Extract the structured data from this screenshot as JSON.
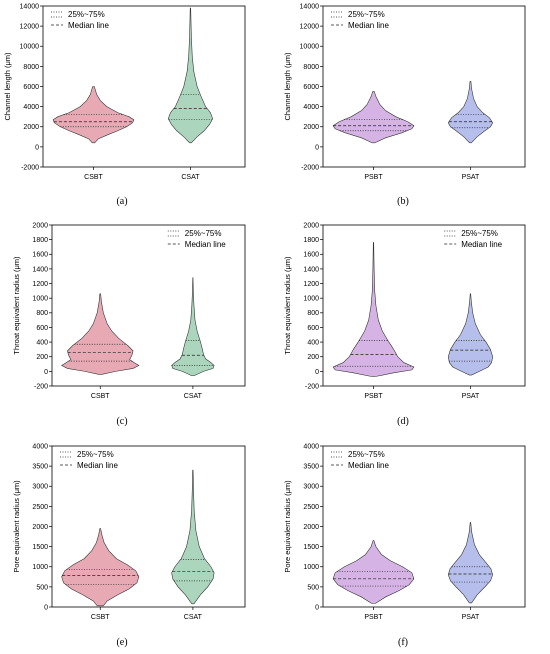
{
  "legend": {
    "quartile_label": "25%~75%",
    "median_label": "Median line"
  },
  "chart_data": [
    {
      "id": "a",
      "caption": "(a)",
      "type": "violin",
      "ylabel": "Channel length (μm)",
      "ylim": [
        -2000,
        14000
      ],
      "yticks": [
        -2000,
        0,
        2000,
        4000,
        6000,
        8000,
        10000,
        12000,
        14000
      ],
      "legend_position": "top-left",
      "colors": {
        "fill": "#e39aa6",
        "edge": "#444444"
      },
      "groups": [
        {
          "name": "CSBT",
          "fill": "#e39aa6",
          "profile": [
            [
              400,
              0.03
            ],
            [
              800,
              0.12
            ],
            [
              1200,
              0.35
            ],
            [
              1600,
              0.6
            ],
            [
              2000,
              0.82
            ],
            [
              2400,
              0.97
            ],
            [
              2700,
              1.0
            ],
            [
              3000,
              0.88
            ],
            [
              3400,
              0.6
            ],
            [
              4000,
              0.33
            ],
            [
              4600,
              0.17
            ],
            [
              5200,
              0.08
            ],
            [
              6000,
              0.02
            ]
          ],
          "q1": 2000,
          "median": 2500,
          "q3": 3200
        },
        {
          "name": "CSAT",
          "fill": "#9ccfb2",
          "profile": [
            [
              400,
              0.04
            ],
            [
              1000,
              0.3
            ],
            [
              1600,
              0.62
            ],
            [
              2200,
              0.85
            ],
            [
              2800,
              1.0
            ],
            [
              3400,
              0.9
            ],
            [
              4000,
              0.68
            ],
            [
              5000,
              0.48
            ],
            [
              6000,
              0.3
            ],
            [
              7500,
              0.15
            ],
            [
              9000,
              0.08
            ],
            [
              11000,
              0.04
            ],
            [
              13800,
              0.01
            ]
          ],
          "q1": 2700,
          "median": 3800,
          "q3": 5200
        }
      ]
    },
    {
      "id": "b",
      "caption": "(b)",
      "type": "violin",
      "ylabel": "Channel length (μm)",
      "ylim": [
        -2000,
        14000
      ],
      "yticks": [
        -2000,
        0,
        2000,
        4000,
        6000,
        8000,
        10000,
        12000,
        14000
      ],
      "legend_position": "top-left",
      "colors": {
        "fill": "#cfa6e0",
        "edge": "#444444"
      },
      "groups": [
        {
          "name": "PSBT",
          "fill": "#cfa6e0",
          "profile": [
            [
              400,
              0.03
            ],
            [
              900,
              0.3
            ],
            [
              1400,
              0.7
            ],
            [
              1800,
              0.95
            ],
            [
              2100,
              1.0
            ],
            [
              2500,
              0.85
            ],
            [
              3000,
              0.55
            ],
            [
              3600,
              0.3
            ],
            [
              4200,
              0.16
            ],
            [
              5000,
              0.06
            ],
            [
              5500,
              0.02
            ]
          ],
          "q1": 1600,
          "median": 2100,
          "q3": 2700
        },
        {
          "name": "PSAT",
          "fill": "#a9b4e8",
          "profile": [
            [
              400,
              0.04
            ],
            [
              1000,
              0.3
            ],
            [
              1600,
              0.65
            ],
            [
              2000,
              0.9
            ],
            [
              2400,
              1.0
            ],
            [
              2900,
              0.85
            ],
            [
              3400,
              0.55
            ],
            [
              4000,
              0.3
            ],
            [
              4800,
              0.14
            ],
            [
              5800,
              0.05
            ],
            [
              6500,
              0.02
            ]
          ],
          "q1": 1900,
          "median": 2500,
          "q3": 3200
        }
      ]
    },
    {
      "id": "c",
      "caption": "(c)",
      "type": "violin",
      "ylabel": "Throat equivalent radius (μm)",
      "ylim": [
        -200,
        2000
      ],
      "yticks": [
        -200,
        0,
        200,
        400,
        600,
        800,
        1000,
        1200,
        1400,
        1600,
        1800,
        2000
      ],
      "legend_position": "top-right",
      "colors": {
        "fill": "#e39aa6",
        "edge": "#444444"
      },
      "groups": [
        {
          "name": "CSBT",
          "fill": "#e39aa6",
          "profile": [
            [
              -40,
              0.05
            ],
            [
              0,
              0.4
            ],
            [
              40,
              0.85
            ],
            [
              80,
              1.0
            ],
            [
              120,
              0.88
            ],
            [
              160,
              0.76
            ],
            [
              220,
              0.82
            ],
            [
              280,
              0.85
            ],
            [
              350,
              0.72
            ],
            [
              450,
              0.48
            ],
            [
              550,
              0.3
            ],
            [
              650,
              0.18
            ],
            [
              800,
              0.08
            ],
            [
              950,
              0.03
            ],
            [
              1060,
              0.01
            ]
          ],
          "q1": 140,
          "median": 260,
          "q3": 370
        },
        {
          "name": "CSAT",
          "fill": "#9ccfb2",
          "profile": [
            [
              -60,
              0.05
            ],
            [
              0,
              0.5
            ],
            [
              40,
              0.95
            ],
            [
              80,
              1.0
            ],
            [
              120,
              0.85
            ],
            [
              170,
              0.6
            ],
            [
              230,
              0.5
            ],
            [
              300,
              0.45
            ],
            [
              400,
              0.36
            ],
            [
              550,
              0.2
            ],
            [
              700,
              0.1
            ],
            [
              900,
              0.05
            ],
            [
              1100,
              0.02
            ],
            [
              1280,
              0.005
            ]
          ],
          "q1": 80,
          "median": 220,
          "q3": 420
        }
      ]
    },
    {
      "id": "d",
      "caption": "(d)",
      "type": "violin",
      "ylabel": "Throat equivalent radius (μm)",
      "ylim": [
        -200,
        2000
      ],
      "yticks": [
        -200,
        0,
        200,
        400,
        600,
        800,
        1000,
        1200,
        1400,
        1600,
        1800,
        2000
      ],
      "legend_position": "top-right",
      "colors": {
        "fill": "#cfa6e0",
        "edge": "#444444"
      },
      "groups": [
        {
          "name": "PSBT",
          "fill": "#cfa6e0",
          "profile": [
            [
              -70,
              0.05
            ],
            [
              -20,
              0.5
            ],
            [
              20,
              0.95
            ],
            [
              60,
              1.0
            ],
            [
              120,
              0.75
            ],
            [
              200,
              0.6
            ],
            [
              300,
              0.5
            ],
            [
              400,
              0.38
            ],
            [
              550,
              0.22
            ],
            [
              700,
              0.12
            ],
            [
              900,
              0.06
            ],
            [
              1100,
              0.03
            ],
            [
              1400,
              0.015
            ],
            [
              1760,
              0.005
            ]
          ],
          "q1": 70,
          "median": 230,
          "q3": 420
        },
        {
          "name": "PSAT",
          "fill": "#a9b4e8",
          "profile": [
            [
              -50,
              0.05
            ],
            [
              0,
              0.4
            ],
            [
              60,
              0.8
            ],
            [
              120,
              0.95
            ],
            [
              200,
              1.0
            ],
            [
              300,
              0.9
            ],
            [
              400,
              0.7
            ],
            [
              500,
              0.45
            ],
            [
              650,
              0.22
            ],
            [
              800,
              0.1
            ],
            [
              950,
              0.04
            ],
            [
              1060,
              0.01
            ]
          ],
          "q1": 140,
          "median": 290,
          "q3": 420
        }
      ]
    },
    {
      "id": "e",
      "caption": "(e)",
      "type": "violin",
      "ylabel": "Pore equivalent radius (μm)",
      "ylim": [
        0,
        4000
      ],
      "yticks": [
        0,
        500,
        1000,
        1500,
        2000,
        2500,
        3000,
        3500,
        4000
      ],
      "legend_position": "top-left",
      "colors": {
        "fill": "#e39aa6",
        "edge": "#444444"
      },
      "groups": [
        {
          "name": "CSBT",
          "fill": "#e39aa6",
          "profile": [
            [
              30,
              0.08
            ],
            [
              150,
              0.18
            ],
            [
              300,
              0.45
            ],
            [
              450,
              0.75
            ],
            [
              600,
              0.95
            ],
            [
              750,
              1.0
            ],
            [
              900,
              0.92
            ],
            [
              1050,
              0.7
            ],
            [
              1200,
              0.42
            ],
            [
              1400,
              0.22
            ],
            [
              1600,
              0.1
            ],
            [
              1800,
              0.04
            ],
            [
              1950,
              0.01
            ]
          ],
          "q1": 560,
          "median": 780,
          "q3": 930
        },
        {
          "name": "CSAT",
          "fill": "#9ccfb2",
          "profile": [
            [
              80,
              0.05
            ],
            [
              300,
              0.35
            ],
            [
              500,
              0.7
            ],
            [
              700,
              0.95
            ],
            [
              850,
              1.0
            ],
            [
              1000,
              0.85
            ],
            [
              1200,
              0.55
            ],
            [
              1500,
              0.3
            ],
            [
              1900,
              0.14
            ],
            [
              2400,
              0.06
            ],
            [
              2900,
              0.03
            ],
            [
              3400,
              0.01
            ]
          ],
          "q1": 650,
          "median": 880,
          "q3": 1180
        }
      ]
    },
    {
      "id": "f",
      "caption": "(f)",
      "type": "violin",
      "ylabel": "Pore equivalent radius (μm)",
      "ylim": [
        0,
        4000
      ],
      "yticks": [
        0,
        500,
        1000,
        1500,
        2000,
        2500,
        3000,
        3500,
        4000
      ],
      "legend_position": "top-left",
      "colors": {
        "fill": "#cfa6e0",
        "edge": "#444444"
      },
      "groups": [
        {
          "name": "PSBT",
          "fill": "#cfa6e0",
          "profile": [
            [
              90,
              0.05
            ],
            [
              250,
              0.3
            ],
            [
              400,
              0.62
            ],
            [
              550,
              0.88
            ],
            [
              700,
              1.0
            ],
            [
              850,
              0.95
            ],
            [
              1000,
              0.72
            ],
            [
              1150,
              0.42
            ],
            [
              1300,
              0.2
            ],
            [
              1500,
              0.06
            ],
            [
              1650,
              0.01
            ]
          ],
          "q1": 520,
          "median": 700,
          "q3": 880
        },
        {
          "name": "PSAT",
          "fill": "#a9b4e8",
          "profile": [
            [
              100,
              0.05
            ],
            [
              300,
              0.3
            ],
            [
              500,
              0.65
            ],
            [
              650,
              0.9
            ],
            [
              800,
              1.0
            ],
            [
              950,
              0.92
            ],
            [
              1100,
              0.7
            ],
            [
              1300,
              0.4
            ],
            [
              1550,
              0.18
            ],
            [
              1850,
              0.06
            ],
            [
              2100,
              0.01
            ]
          ],
          "q1": 620,
          "median": 820,
          "q3": 1000
        }
      ]
    }
  ]
}
